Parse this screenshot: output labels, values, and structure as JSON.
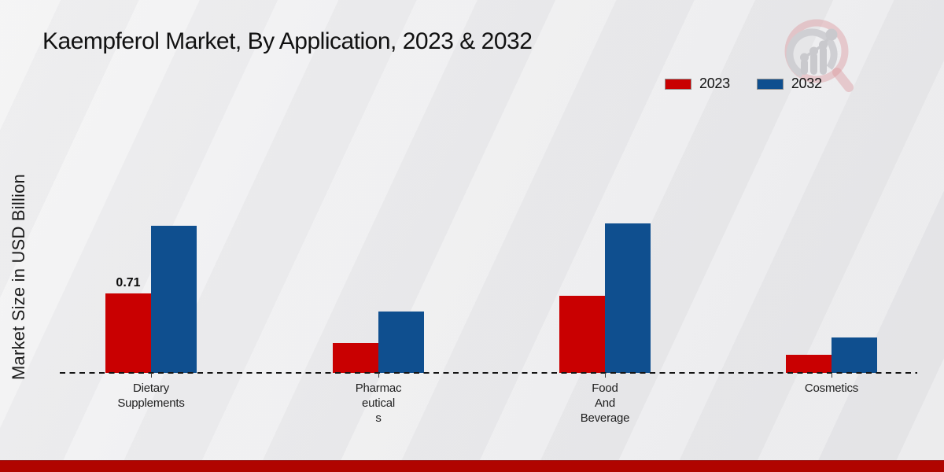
{
  "chart_data": {
    "type": "bar",
    "title": "Kaempferol Market, By Application, 2023 & 2032",
    "ylabel": "Market Size in USD Billion",
    "xlabel": "",
    "categories": [
      "Dietary Supplements",
      "Pharmaceuticals",
      "Food And Beverage",
      "Cosmetics"
    ],
    "category_display_lines": [
      [
        "Dietary",
        "Supplements"
      ],
      [
        "Pharmac",
        "eutical",
        "s"
      ],
      [
        "Food",
        "And",
        "Beverage"
      ],
      [
        "Cosmetics"
      ]
    ],
    "series": [
      {
        "name": "2023",
        "color": "#c90001",
        "values": [
          0.71,
          0.27,
          0.69,
          0.16
        ]
      },
      {
        "name": "2032",
        "color": "#0f4f8f",
        "values": [
          1.32,
          0.55,
          1.34,
          0.32
        ]
      }
    ],
    "bar_value_labels": [
      {
        "series": "2023",
        "category": "Dietary Supplements",
        "text": "0.71"
      }
    ],
    "ylim": [
      0,
      1.5
    ],
    "grid": false,
    "legend_position": "top-right",
    "baseline_style": "dashed"
  },
  "colors": {
    "accent_2023": "#c90001",
    "accent_2032": "#0f4f8f",
    "footer_bar": "#b00400",
    "dash_line": "#141414",
    "text": "#1a1a1a"
  },
  "watermark_icon": "magnifier-bar-chart-logo"
}
